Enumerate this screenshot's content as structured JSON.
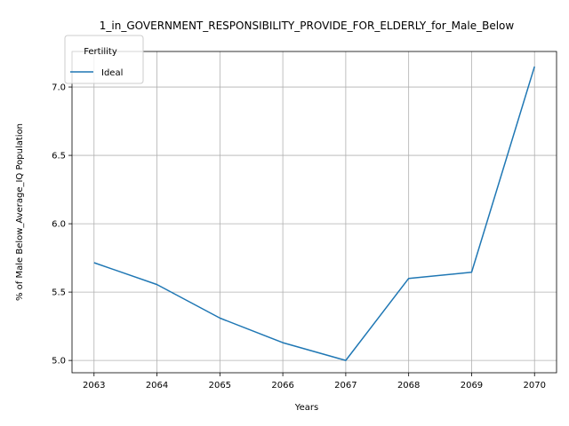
{
  "chart_data": {
    "type": "line",
    "title": "1_in_GOVERNMENT_RESPONSIBILITY_PROVIDE_FOR_ELDERLY_for_Male_Below",
    "xlabel": "Years",
    "ylabel": "% of Male Below_Average_IQ Population",
    "x": [
      2063,
      2064,
      2065,
      2066,
      2067,
      2068,
      2069,
      2070
    ],
    "xticks": [
      "2063",
      "2064",
      "2065",
      "2066",
      "2067",
      "2068",
      "2069",
      "2070"
    ],
    "yticks": [
      "5.0",
      "5.5",
      "6.0",
      "6.5",
      "7.0"
    ],
    "ytick_values": [
      5.0,
      5.5,
      6.0,
      6.5,
      7.0
    ],
    "xlim": [
      2062.65,
      2070.35
    ],
    "ylim": [
      4.91,
      7.26
    ],
    "grid": true,
    "legend": {
      "title": "Fertility",
      "placement": "top-left"
    },
    "series": [
      {
        "name": "Ideal",
        "color": "#1f77b4",
        "values": [
          5.715,
          5.555,
          5.31,
          5.13,
          5.0,
          5.6,
          5.645,
          7.15
        ]
      }
    ]
  }
}
